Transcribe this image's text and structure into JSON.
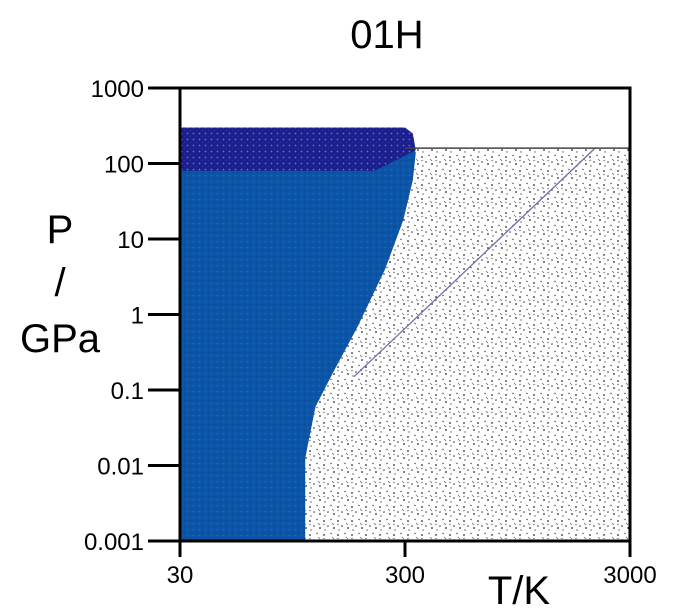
{
  "chart_data": {
    "type": "area",
    "title": "01H",
    "xlabel": "T/K",
    "ylabel": [
      "P",
      "/",
      "GPa"
    ],
    "x_scale": "log",
    "y_scale": "log",
    "xlim": [
      30,
      3000
    ],
    "ylim": [
      0.001,
      1000
    ],
    "x_ticks": [
      {
        "value": 30,
        "label": "30"
      },
      {
        "value": 300,
        "label": "300"
      },
      {
        "value": 3000,
        "label": "3000"
      }
    ],
    "y_ticks": [
      {
        "value": 0.001,
        "label": "0.001"
      },
      {
        "value": 0.01,
        "label": "0.01"
      },
      {
        "value": 0.1,
        "label": "0.1"
      },
      {
        "value": 1,
        "label": "1"
      },
      {
        "value": 10,
        "label": "10"
      },
      {
        "value": 100,
        "label": "100"
      },
      {
        "value": 1000,
        "label": "1000"
      }
    ],
    "grid": false,
    "regions": [
      {
        "id": "blue-region",
        "color": "#0b55a8",
        "points": [
          [
            30,
            0.001
          ],
          [
            108,
            0.001
          ],
          [
            108,
            0.0125
          ],
          [
            120,
            0.06
          ],
          [
            145,
            0.18
          ],
          [
            185,
            0.7
          ],
          [
            245,
            4
          ],
          [
            295,
            18
          ],
          [
            325,
            60
          ],
          [
            335,
            140
          ],
          [
            300,
            250
          ],
          [
            30,
            250
          ]
        ]
      },
      {
        "id": "navy-band",
        "color": "#1a1f8c",
        "points": [
          [
            30,
            80
          ],
          [
            220,
            80
          ],
          [
            290,
            120
          ],
          [
            335,
            150
          ],
          [
            325,
            250
          ],
          [
            300,
            300
          ],
          [
            30,
            300
          ]
        ]
      },
      {
        "id": "speckled-region",
        "color": "#3a3a3a",
        "points": [
          [
            108,
            0.001
          ],
          [
            3000,
            0.001
          ],
          [
            3000,
            160
          ],
          [
            340,
            160
          ],
          [
            325,
            60
          ],
          [
            295,
            18
          ],
          [
            245,
            4
          ],
          [
            185,
            0.7
          ],
          [
            145,
            0.18
          ],
          [
            120,
            0.06
          ],
          [
            108,
            0.0125
          ]
        ]
      }
    ],
    "lines": [
      {
        "id": "diagonal-line",
        "color": "#7a6aa8",
        "points": [
          [
            178,
            0.15
          ],
          [
            2100,
            160
          ]
        ]
      },
      {
        "id": "top-boundary-line",
        "color": "#444444",
        "points": [
          [
            300,
            160
          ],
          [
            3000,
            160
          ]
        ]
      }
    ]
  }
}
